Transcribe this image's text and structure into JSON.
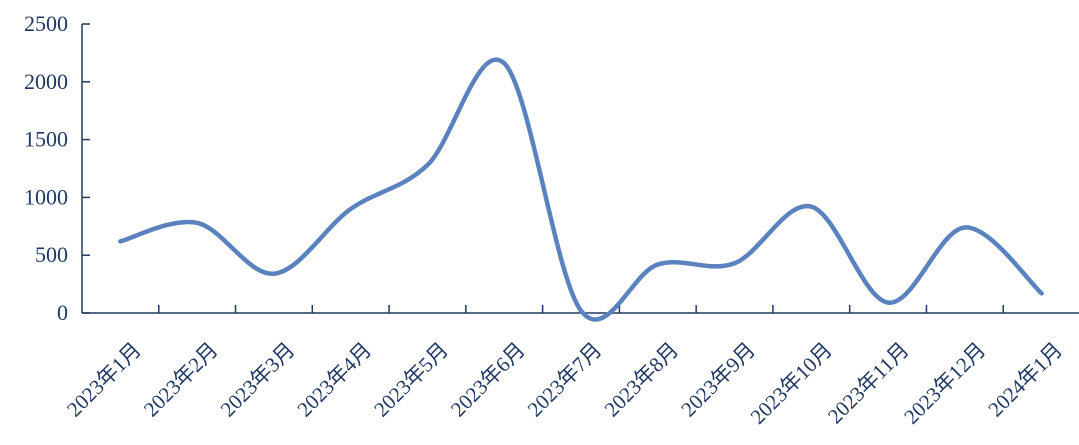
{
  "chart_data": {
    "type": "line",
    "smooth": true,
    "title": "",
    "xlabel": "",
    "ylabel": "",
    "categories": [
      "2023年1月",
      "2023年2月",
      "2023年3月",
      "2023年4月",
      "2023年5月",
      "2023年6月",
      "2023年7月",
      "2023年8月",
      "2023年9月",
      "2023年10月",
      "2023年11月",
      "2023年12月",
      "2024年1月"
    ],
    "series": [
      {
        "values": [
          620,
          780,
          340,
          900,
          1280,
          2160,
          20,
          420,
          430,
          920,
          90,
          740,
          170
        ]
      }
    ],
    "ylim": [
      0,
      2500
    ],
    "yticks": [
      0,
      500,
      1000,
      1500,
      2000,
      2500
    ],
    "grid": false,
    "legend": "none",
    "colors": {
      "line": "#5a82bf",
      "axis": "#1f3864",
      "text": "#1f3864"
    }
  }
}
